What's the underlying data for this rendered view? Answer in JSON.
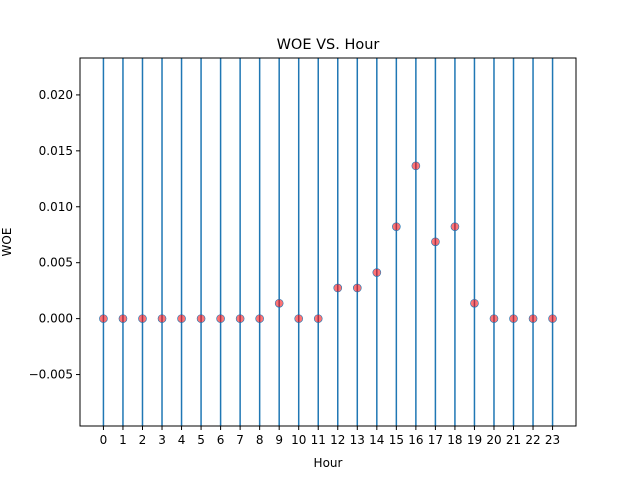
{
  "chart_data": {
    "type": "scatter",
    "title": "WOE VS. Hour",
    "xlabel": "Hour",
    "ylabel": "WOE",
    "x": [
      0,
      1,
      2,
      3,
      4,
      5,
      6,
      7,
      8,
      9,
      10,
      11,
      12,
      13,
      14,
      15,
      16,
      17,
      18,
      19,
      20,
      21,
      22,
      23
    ],
    "y": [
      0,
      0,
      0,
      0,
      0,
      0,
      0,
      0,
      0,
      0.00137,
      0,
      0,
      0.00274,
      0.00274,
      0.00412,
      0.00822,
      0.01366,
      0.00687,
      0.00822,
      0.00137,
      0,
      0,
      0,
      0
    ],
    "xlim": [
      -1.2,
      24.2
    ],
    "ylim": [
      -0.0096,
      0.0233
    ],
    "x_ticks": [
      "0",
      "1",
      "2",
      "3",
      "4",
      "5",
      "6",
      "7",
      "8",
      "9",
      "10",
      "11",
      "12",
      "13",
      "14",
      "15",
      "16",
      "17",
      "18",
      "19",
      "20",
      "21",
      "22",
      "23"
    ],
    "y_ticks": [
      {
        "value": 0.02,
        "label": "0.020"
      },
      {
        "value": 0.015,
        "label": "0.015"
      },
      {
        "value": 0.01,
        "label": "0.010"
      },
      {
        "value": 0.005,
        "label": "0.005"
      },
      {
        "value": 0.0,
        "label": "0.000"
      },
      {
        "value": -0.005,
        "label": "−0.005"
      }
    ],
    "vertical_lines_at": [
      0,
      1,
      2,
      3,
      4,
      5,
      6,
      7,
      8,
      9,
      10,
      11,
      12,
      13,
      14,
      15,
      16,
      17,
      18,
      19,
      20,
      21,
      22,
      23
    ],
    "grid": false,
    "colors": {
      "line": "#1f77b4",
      "point": "#ff0000",
      "point_edge": "#1f77b4"
    }
  }
}
